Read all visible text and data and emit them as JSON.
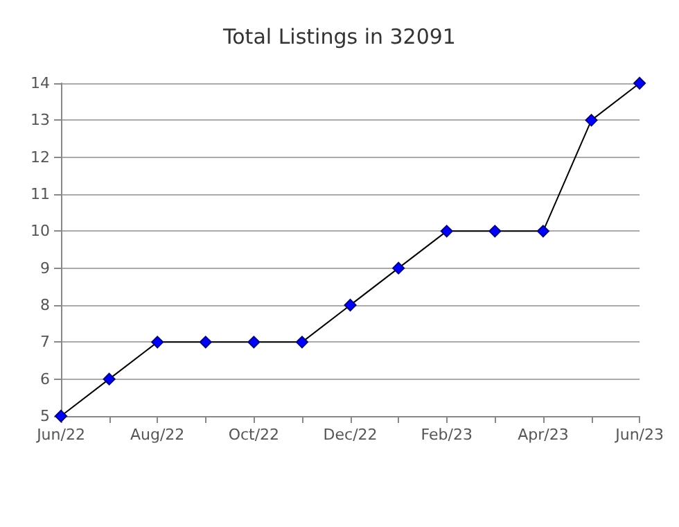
{
  "chart_data": {
    "type": "line",
    "title": "Total Listings in 32091",
    "categories": [
      "Jun/22",
      null,
      "Aug/22",
      null,
      "Oct/22",
      null,
      "Dec/22",
      null,
      "Feb/23",
      null,
      "Apr/23",
      null,
      "Jun/23"
    ],
    "series": [
      {
        "color": "#0000ff",
        "values": [
          5,
          6,
          7,
          7,
          7,
          7,
          8,
          9,
          10,
          10,
          10,
          13,
          14
        ]
      }
    ],
    "ylim": [
      5,
      14
    ],
    "yticks": [
      5,
      6,
      7,
      8,
      9,
      10,
      11,
      12,
      13,
      14
    ],
    "grid": "y",
    "marker": "diamond",
    "line_style": "solid"
  }
}
